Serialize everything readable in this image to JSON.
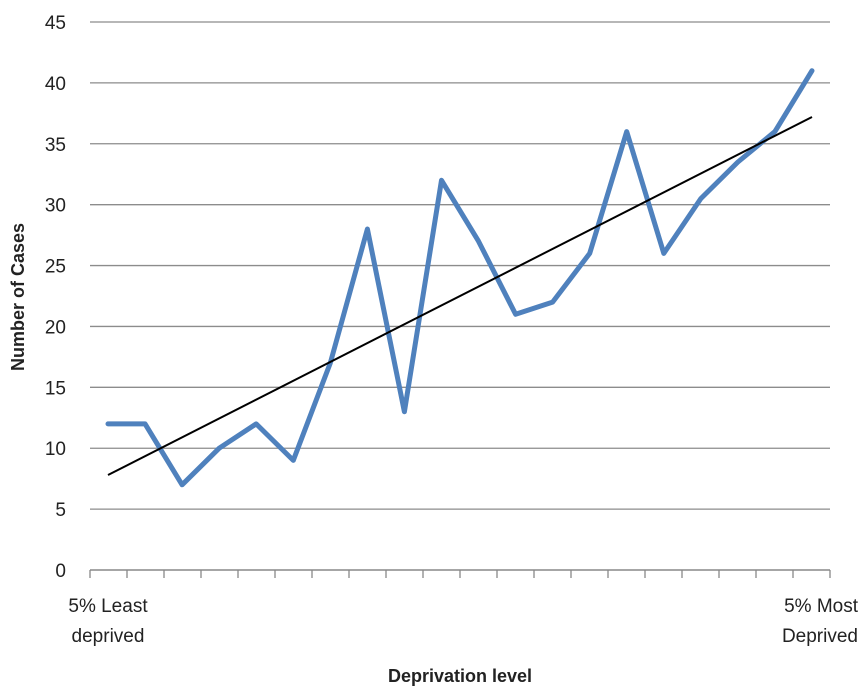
{
  "chart_data": {
    "type": "line",
    "xlabel": "Deprivation level",
    "ylabel": "Number of Cases",
    "ylim": [
      0,
      45
    ],
    "yticks": [
      0,
      5,
      10,
      15,
      20,
      25,
      30,
      35,
      40,
      45
    ],
    "x_label_start": [
      "5% Least",
      "deprived"
    ],
    "x_label_end": [
      "5% Most",
      "Deprived"
    ],
    "grid": true,
    "series": [
      {
        "values": [
          12,
          12,
          7,
          10,
          12,
          9,
          17,
          28,
          13,
          32,
          27,
          21,
          22,
          26,
          36,
          26,
          30.5,
          33.5,
          36,
          41
        ],
        "color": "#4f81bd"
      }
    ],
    "trendline": {
      "start": 7.8,
      "end": 37.2,
      "color": "#000000"
    }
  }
}
